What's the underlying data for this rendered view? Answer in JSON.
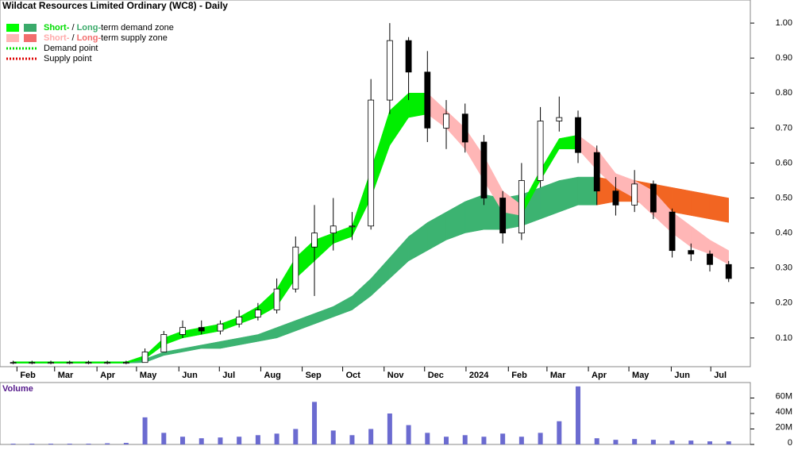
{
  "chart_data": [
    {
      "type": "candlestick",
      "title": "Wildcat Resources Limited Ordinary (WC8) - Daily",
      "legend": [
        {
          "text": [
            "Short-",
            " / ",
            "Long-",
            "term demand zone"
          ],
          "colors": [
            "#00dd00",
            "#000000",
            "#3aaa6a",
            "#000000"
          ],
          "swatch": [
            "#00ff00",
            "#3aaa6a"
          ]
        },
        {
          "text": [
            "Short-",
            " / ",
            "Long-",
            "term supply zone"
          ],
          "colors": [
            "#ffaaaa",
            "#000000",
            "#f26d6d",
            "#000000"
          ],
          "swatch": [
            "#ffb6b6",
            "#f26d6d"
          ]
        },
        {
          "text": [
            "Demand point"
          ],
          "colors": [
            "#000000"
          ],
          "dotted": "#00dd00"
        },
        {
          "text": [
            "Supply point"
          ],
          "colors": [
            "#000000"
          ],
          "dotted": "#dd0000"
        }
      ],
      "x": [
        4,
        6,
        8,
        10,
        12,
        14,
        16,
        18,
        20,
        22,
        24,
        26,
        28,
        30,
        32,
        34,
        36,
        38,
        40,
        42,
        44,
        46,
        48,
        50,
        52,
        54,
        56,
        58,
        60,
        62,
        64,
        66,
        68,
        70,
        72,
        74,
        76,
        78,
        80
      ],
      "open": [
        0.03,
        0.03,
        0.03,
        0.03,
        0.03,
        0.03,
        0.03,
        0.03,
        0.06,
        0.11,
        0.13,
        0.12,
        0.14,
        0.16,
        0.18,
        0.24,
        0.36,
        0.4,
        0.42,
        0.42,
        0.78,
        0.95,
        0.86,
        0.7,
        0.74,
        0.66,
        0.5,
        0.4,
        0.55,
        0.72,
        0.73,
        0.63,
        0.52,
        0.48,
        0.54,
        0.46,
        0.35,
        0.34,
        0.31
      ],
      "high": [
        0.035,
        0.035,
        0.035,
        0.035,
        0.035,
        0.035,
        0.035,
        0.07,
        0.12,
        0.15,
        0.15,
        0.15,
        0.18,
        0.2,
        0.27,
        0.39,
        0.48,
        0.5,
        0.46,
        0.84,
        1.0,
        0.96,
        0.92,
        0.78,
        0.77,
        0.68,
        0.52,
        0.6,
        0.76,
        0.79,
        0.75,
        0.65,
        0.56,
        0.58,
        0.55,
        0.47,
        0.37,
        0.35,
        0.32
      ],
      "low": [
        0.025,
        0.025,
        0.025,
        0.025,
        0.025,
        0.025,
        0.025,
        0.03,
        0.06,
        0.1,
        0.11,
        0.11,
        0.13,
        0.15,
        0.17,
        0.23,
        0.22,
        0.35,
        0.38,
        0.41,
        0.74,
        0.78,
        0.66,
        0.64,
        0.63,
        0.48,
        0.37,
        0.38,
        0.53,
        0.69,
        0.6,
        0.48,
        0.45,
        0.46,
        0.44,
        0.33,
        0.32,
        0.29,
        0.26
      ],
      "close": [
        0.03,
        0.03,
        0.03,
        0.03,
        0.03,
        0.03,
        0.03,
        0.06,
        0.11,
        0.13,
        0.12,
        0.14,
        0.16,
        0.18,
        0.24,
        0.36,
        0.4,
        0.42,
        0.42,
        0.78,
        0.95,
        0.86,
        0.7,
        0.74,
        0.66,
        0.5,
        0.4,
        0.55,
        0.72,
        0.73,
        0.63,
        0.52,
        0.48,
        0.54,
        0.46,
        0.35,
        0.34,
        0.31,
        0.27
      ],
      "bands": [
        {
          "name": "Long-term zone",
          "colors": {
            "demand": "#3cb371",
            "supply": "#f26522"
          },
          "lower": [
            0.028,
            0.028,
            0.028,
            0.028,
            0.028,
            0.028,
            0.028,
            0.03,
            0.05,
            0.06,
            0.07,
            0.07,
            0.08,
            0.09,
            0.1,
            0.12,
            0.14,
            0.16,
            0.18,
            0.22,
            0.27,
            0.32,
            0.35,
            0.38,
            0.4,
            0.41,
            0.41,
            0.42,
            0.44,
            0.46,
            0.48,
            0.48,
            0.49,
            0.49,
            0.48,
            0.46,
            0.45,
            0.44,
            0.43
          ],
          "upper": [
            0.032,
            0.032,
            0.032,
            0.032,
            0.032,
            0.032,
            0.032,
            0.04,
            0.06,
            0.07,
            0.08,
            0.09,
            0.1,
            0.11,
            0.13,
            0.15,
            0.17,
            0.19,
            0.22,
            0.27,
            0.33,
            0.39,
            0.43,
            0.46,
            0.49,
            0.51,
            0.5,
            0.51,
            0.53,
            0.55,
            0.56,
            0.56,
            0.55,
            0.55,
            0.54,
            0.53,
            0.52,
            0.51,
            0.5
          ],
          "state": [
            "demand",
            "demand",
            "demand",
            "demand",
            "demand",
            "demand",
            "demand",
            "demand",
            "demand",
            "demand",
            "demand",
            "demand",
            "demand",
            "demand",
            "demand",
            "demand",
            "demand",
            "demand",
            "demand",
            "demand",
            "demand",
            "demand",
            "demand",
            "demand",
            "demand",
            "demand",
            "demand",
            "demand",
            "demand",
            "demand",
            "demand",
            "supply",
            "supply",
            "supply",
            "supply",
            "supply",
            "supply",
            "supply",
            "supply"
          ]
        },
        {
          "name": "Short-term zone",
          "colors": {
            "demand": "#00ee00",
            "supply": "#ffb6b6"
          },
          "lower": [
            0.028,
            0.028,
            0.028,
            0.028,
            0.028,
            0.028,
            0.028,
            0.04,
            0.08,
            0.1,
            0.11,
            0.12,
            0.14,
            0.16,
            0.19,
            0.27,
            0.32,
            0.37,
            0.39,
            0.5,
            0.65,
            0.73,
            0.74,
            0.7,
            0.64,
            0.55,
            0.46,
            0.45,
            0.55,
            0.64,
            0.64,
            0.58,
            0.53,
            0.5,
            0.45,
            0.4,
            0.36,
            0.34,
            0.31
          ],
          "upper": [
            0.032,
            0.032,
            0.032,
            0.032,
            0.032,
            0.032,
            0.032,
            0.05,
            0.1,
            0.12,
            0.13,
            0.14,
            0.16,
            0.19,
            0.24,
            0.33,
            0.38,
            0.4,
            0.42,
            0.58,
            0.75,
            0.8,
            0.8,
            0.75,
            0.7,
            0.62,
            0.52,
            0.48,
            0.58,
            0.67,
            0.68,
            0.64,
            0.57,
            0.55,
            0.52,
            0.46,
            0.42,
            0.38,
            0.35
          ],
          "state": [
            "demand",
            "demand",
            "demand",
            "demand",
            "demand",
            "demand",
            "demand",
            "demand",
            "demand",
            "demand",
            "demand",
            "demand",
            "demand",
            "demand",
            "demand",
            "demand",
            "demand",
            "demand",
            "demand",
            "demand",
            "demand",
            "demand",
            "supply",
            "supply",
            "supply",
            "supply",
            "supply",
            "demand",
            "demand",
            "demand",
            "supply",
            "supply",
            "supply",
            "supply",
            "supply",
            "supply",
            "supply",
            "supply",
            "supply"
          ]
        }
      ],
      "xlim": [
        2.6,
        82.3
      ],
      "xticks": [
        {
          "value": 4.4,
          "label": "Feb"
        },
        {
          "value": 8.4,
          "label": "Mar"
        },
        {
          "value": 12.9,
          "label": "Apr"
        },
        {
          "value": 17.1,
          "label": "May"
        },
        {
          "value": 21.6,
          "label": "Jun"
        },
        {
          "value": 25.9,
          "label": "Jul"
        },
        {
          "value": 30.3,
          "label": "Aug"
        },
        {
          "value": 34.7,
          "label": "Sep"
        },
        {
          "value": 39,
          "label": "Oct"
        },
        {
          "value": 43.4,
          "label": "Nov"
        },
        {
          "value": 47.7,
          "label": "Dec"
        },
        {
          "value": 52.1,
          "label": "2024"
        },
        {
          "value": 56.6,
          "label": "Feb"
        },
        {
          "value": 60.7,
          "label": "Mar"
        },
        {
          "value": 65.1,
          "label": "Apr"
        },
        {
          "value": 69.4,
          "label": "May"
        },
        {
          "value": 73.9,
          "label": "Jun"
        },
        {
          "value": 78.1,
          "label": "Jul"
        }
      ],
      "ylim": [
        0.018,
        1.066
      ],
      "yticks": [
        {
          "value": 0.1,
          "label": "0.10"
        },
        {
          "value": 0.2,
          "label": "0.20"
        },
        {
          "value": 0.3,
          "label": "0.30"
        },
        {
          "value": 0.4,
          "label": "0.40"
        },
        {
          "value": 0.5,
          "label": "0.50"
        },
        {
          "value": 0.6,
          "label": "0.60"
        },
        {
          "value": 0.7,
          "label": "0.70"
        },
        {
          "value": 0.8,
          "label": "0.80"
        },
        {
          "value": 0.9,
          "label": "0.90"
        },
        {
          "value": 1.0,
          "label": "1.00"
        }
      ]
    },
    {
      "type": "bar",
      "title": "Volume",
      "color": "#6b6bd0",
      "x": [
        4,
        6,
        8,
        10,
        12,
        14,
        16,
        18,
        20,
        22,
        24,
        26,
        28,
        30,
        32,
        34,
        36,
        38,
        40,
        42,
        44,
        46,
        48,
        50,
        52,
        54,
        56,
        58,
        60,
        62,
        64,
        66,
        68,
        70,
        72,
        74,
        76,
        78,
        80
      ],
      "values": [
        1000000,
        1000000,
        1000000,
        1000000,
        1000000,
        1500000,
        2000000,
        35000000,
        15000000,
        10000000,
        8000000,
        9000000,
        10000000,
        12000000,
        14000000,
        20000000,
        55000000,
        18000000,
        12000000,
        20000000,
        40000000,
        25000000,
        15000000,
        10000000,
        12000000,
        10000000,
        14000000,
        10000000,
        15000000,
        30000000,
        75000000,
        8000000,
        6000000,
        7000000,
        6000000,
        5000000,
        5000000,
        4000000,
        4000000
      ],
      "xlim": [
        2.6,
        82.3
      ],
      "ylim": [
        0,
        80000000
      ],
      "yticks": [
        0,
        {
          "value": 20000000,
          "label": "20M"
        },
        {
          "value": 40000000,
          "label": "40M"
        },
        {
          "value": 60000000,
          "label": "60M"
        }
      ]
    }
  ]
}
